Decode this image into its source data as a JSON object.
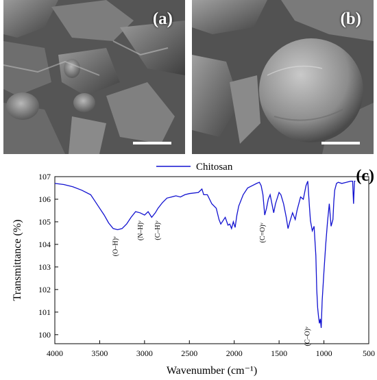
{
  "panels": {
    "a": {
      "label": "(a)"
    },
    "b": {
      "label": "(b)"
    }
  },
  "colors": {
    "series": "#1010d0",
    "sem_bg": "#5a5a5a"
  },
  "chart_data": {
    "type": "line",
    "panel_label": "(c)",
    "xlabel": "Wavenumber (cm⁻¹)",
    "ylabel": "Transmittance (%)",
    "xlim": [
      4000,
      500
    ],
    "ylim": [
      99.6,
      107
    ],
    "xticks": [
      4000,
      3500,
      3000,
      2500,
      2000,
      1500,
      1000,
      500
    ],
    "yticks": [
      100,
      101,
      102,
      103,
      104,
      105,
      106,
      107
    ],
    "legend": {
      "position": "top-center"
    },
    "series": [
      {
        "name": "Chitosan",
        "color": "#1010d0",
        "x": [
          4000,
          3900,
          3800,
          3700,
          3600,
          3550,
          3500,
          3450,
          3400,
          3350,
          3300,
          3250,
          3200,
          3150,
          3100,
          3050,
          3000,
          2960,
          2920,
          2880,
          2850,
          2800,
          2750,
          2700,
          2650,
          2600,
          2550,
          2500,
          2400,
          2360,
          2340,
          2300,
          2250,
          2200,
          2170,
          2150,
          2100,
          2070,
          2050,
          2030,
          2010,
          1990,
          1970,
          1950,
          1900,
          1850,
          1800,
          1750,
          1720,
          1700,
          1680,
          1660,
          1640,
          1620,
          1600,
          1560,
          1540,
          1500,
          1480,
          1450,
          1420,
          1400,
          1380,
          1350,
          1320,
          1300,
          1260,
          1230,
          1200,
          1180,
          1160,
          1150,
          1130,
          1110,
          1090,
          1080,
          1070,
          1060,
          1050,
          1040,
          1030,
          1020,
          1000,
          980,
          960,
          940,
          920,
          900,
          890,
          880,
          860,
          840,
          800,
          750,
          700,
          680,
          670,
          660,
          650
        ],
        "y": [
          106.7,
          106.65,
          106.55,
          106.4,
          106.2,
          105.9,
          105.6,
          105.3,
          104.95,
          104.7,
          104.65,
          104.7,
          104.9,
          105.2,
          105.45,
          105.4,
          105.3,
          105.45,
          105.2,
          105.4,
          105.6,
          105.85,
          106.05,
          106.1,
          106.15,
          106.1,
          106.2,
          106.25,
          106.3,
          106.45,
          106.2,
          106.2,
          105.8,
          105.6,
          105.1,
          104.9,
          105.2,
          104.85,
          104.9,
          104.7,
          105.0,
          104.75,
          105.3,
          105.7,
          106.2,
          106.5,
          106.6,
          106.7,
          106.75,
          106.6,
          106.2,
          105.3,
          105.6,
          106.0,
          106.2,
          105.4,
          105.8,
          106.3,
          106.2,
          105.8,
          105.2,
          104.7,
          105.0,
          105.4,
          105.1,
          105.5,
          106.1,
          106.0,
          106.6,
          106.8,
          105.6,
          105.05,
          104.6,
          104.8,
          103.5,
          102.0,
          101.2,
          100.8,
          100.5,
          100.7,
          100.3,
          101.5,
          102.8,
          104.0,
          105.0,
          105.8,
          104.8,
          105.1,
          105.9,
          106.4,
          106.7,
          106.75,
          106.7,
          106.75,
          106.8,
          106.8,
          105.8,
          106.8,
          106.8
        ]
      }
    ],
    "annotations": [
      {
        "text": "(O–H)ᵛ",
        "x": 3300,
        "y": 104.6
      },
      {
        "text": "(N–H)ᵛ",
        "x": 3020,
        "y": 105.3
      },
      {
        "text": "(C–H)ᵛ",
        "x": 2830,
        "y": 105.3
      },
      {
        "text": "(C=O)ᵛ",
        "x": 1660,
        "y": 105.2
      },
      {
        "text": "(C–O)ᵛ",
        "x": 1160,
        "y": 100.6
      }
    ]
  }
}
